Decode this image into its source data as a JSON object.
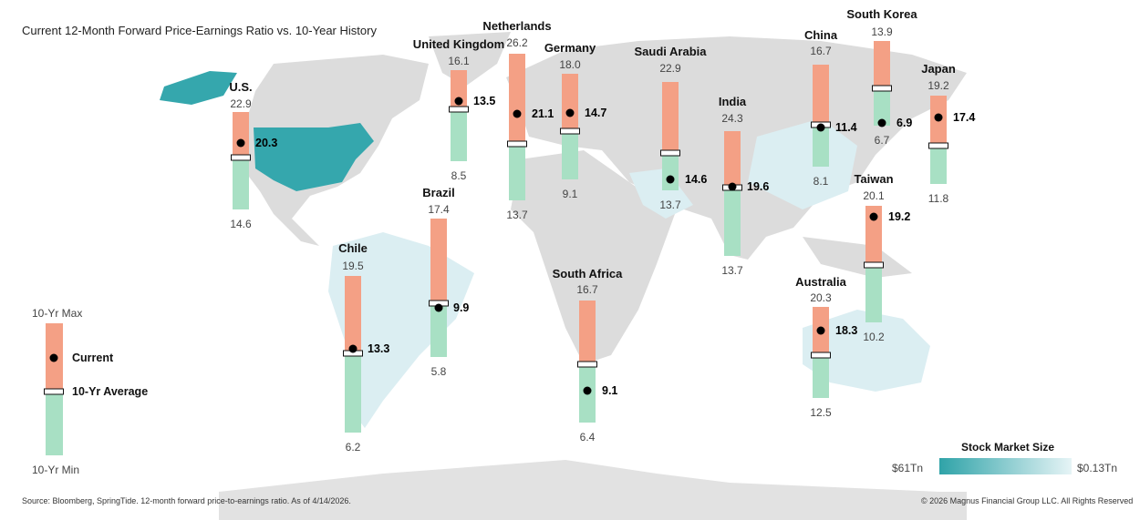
{
  "chart_data": {
    "type": "range-bar-map",
    "title": "Current 12-Month Forward Price-Earnings Ratio vs. 10-Year History",
    "colors": {
      "above_average": "#f4a085",
      "below_average": "#a8e0c4",
      "us_highlight": "#35a7ad",
      "map_land": "#dcdcdc",
      "small_market": "#d9eef2"
    },
    "countries": [
      {
        "name": "U.S.",
        "max": "22.9",
        "min": "14.6",
        "current": "20.3",
        "average": 19.0
      },
      {
        "name": "United Kingdom",
        "max": "16.1",
        "min": "8.5",
        "current": "13.5",
        "average": 12.8
      },
      {
        "name": "Netherlands",
        "max": "26.2",
        "min": "13.7",
        "current": "21.1",
        "average": 18.5
      },
      {
        "name": "Germany",
        "max": "18.0",
        "min": "9.1",
        "current": "14.7",
        "average": 13.2
      },
      {
        "name": "Saudi Arabia",
        "max": "22.9",
        "min": "13.7",
        "current": "14.6",
        "average": 16.9
      },
      {
        "name": "India",
        "max": "24.3",
        "min": "13.7",
        "current": "19.6",
        "average": 19.5
      },
      {
        "name": "China",
        "max": "16.7",
        "min": "8.1",
        "current": "11.4",
        "average": 11.6
      },
      {
        "name": "South Korea",
        "max": "13.9",
        "min": "6.7",
        "current": "6.9",
        "average": 9.9
      },
      {
        "name": "Japan",
        "max": "19.2",
        "min": "11.8",
        "current": "17.4",
        "average": 15.0
      },
      {
        "name": "Taiwan",
        "max": "20.1",
        "min": "10.2",
        "current": "19.2",
        "average": 15.1
      },
      {
        "name": "Australia",
        "max": "20.3",
        "min": "12.5",
        "current": "18.3",
        "average": 16.2
      },
      {
        "name": "South Africa",
        "max": "16.7",
        "min": "6.4",
        "current": "9.1",
        "average": 11.3
      },
      {
        "name": "Chile",
        "max": "19.5",
        "min": "6.2",
        "current": "13.3",
        "average": 12.9
      },
      {
        "name": "Brazil",
        "max": "17.4",
        "min": "5.8",
        "current": "9.9",
        "average": 10.3
      }
    ],
    "legend": {
      "max": "10-Yr Max",
      "current": "Current",
      "average": "10-Yr Average",
      "min": "10-Yr Min"
    },
    "size_scale": {
      "title": "Stock Market Size",
      "high": "$61Tn",
      "low": "$0.13Tn"
    }
  },
  "footer": {
    "source": "Source: Bloomberg, SpringTide. 12-month forward price-to-earnings ratio. As of 4/14/2026.",
    "copyright": "© 2026 Magnus Financial Group LLC. All Rights Reserved"
  }
}
